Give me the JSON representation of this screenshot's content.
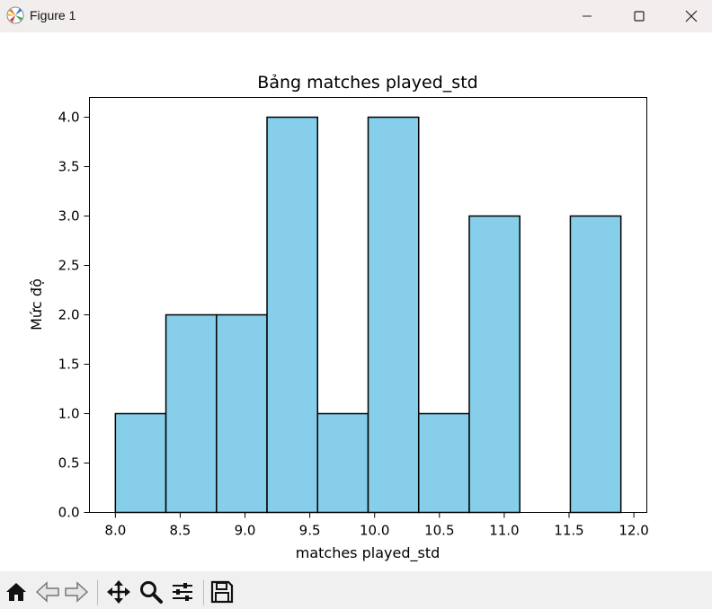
{
  "window": {
    "title": "Figure 1",
    "icons": [
      "matplotlib-logo-icon",
      "minimize-icon",
      "maximize-icon",
      "close-icon"
    ]
  },
  "toolbar": {
    "icons": [
      "home-icon",
      "back-arrow-icon",
      "forward-arrow-icon",
      "pan-move-icon",
      "zoom-magnifier-icon",
      "configure-subplots-icon",
      "save-floppy-icon"
    ]
  },
  "chart_data": {
    "type": "bar",
    "title": "Bảng matches played_std",
    "xlabel": "matches played_std",
    "ylabel": "Mức độ",
    "bins": [
      {
        "x0": 8.0,
        "x1": 8.39,
        "count": 1
      },
      {
        "x0": 8.39,
        "x1": 8.78,
        "count": 2
      },
      {
        "x0": 8.78,
        "x1": 9.17,
        "count": 2
      },
      {
        "x0": 9.17,
        "x1": 9.56,
        "count": 4
      },
      {
        "x0": 9.56,
        "x1": 9.95,
        "count": 1
      },
      {
        "x0": 9.95,
        "x1": 10.34,
        "count": 4
      },
      {
        "x0": 10.34,
        "x1": 10.73,
        "count": 1
      },
      {
        "x0": 10.73,
        "x1": 11.12,
        "count": 3
      },
      {
        "x0": 11.12,
        "x1": 11.51,
        "count": 0
      },
      {
        "x0": 11.51,
        "x1": 11.9,
        "count": 3
      }
    ],
    "xlim": [
      7.8,
      12.1
    ],
    "ylim": [
      0,
      4.2
    ],
    "xticks": [
      8.0,
      8.5,
      9.0,
      9.5,
      10.0,
      10.5,
      11.0,
      11.5,
      12.0
    ],
    "xtick_labels": [
      "8.0",
      "8.5",
      "9.0",
      "9.5",
      "10.0",
      "10.5",
      "11.0",
      "11.5",
      "12.0"
    ],
    "yticks": [
      0.0,
      0.5,
      1.0,
      1.5,
      2.0,
      2.5,
      3.0,
      3.5,
      4.0
    ],
    "ytick_labels": [
      "0.0",
      "0.5",
      "1.0",
      "1.5",
      "2.0",
      "2.5",
      "3.0",
      "3.5",
      "4.0"
    ],
    "bar_color": "#87ceeb",
    "edge_color": "#000000",
    "grid": false
  }
}
